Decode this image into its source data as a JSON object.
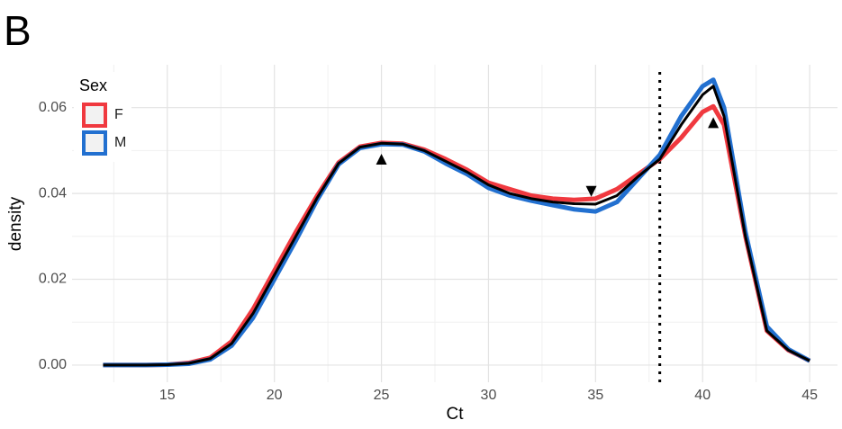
{
  "chart_data": {
    "type": "line",
    "panel_label": "B",
    "x_label": "Ct",
    "y_label": "density",
    "x": [
      12,
      13,
      14,
      15,
      16,
      17,
      18,
      19,
      20,
      21,
      22,
      23,
      24,
      25,
      26,
      27,
      28,
      29,
      30,
      31,
      32,
      33,
      34,
      35,
      36,
      37,
      38,
      39,
      40,
      40.5,
      41,
      42,
      43,
      44,
      45
    ],
    "series": [
      {
        "name": "F",
        "color": "#f0393f",
        "values": [
          0,
          0,
          0,
          0.0001,
          0.0005,
          0.0017,
          0.0055,
          0.013,
          0.022,
          0.031,
          0.0395,
          0.0472,
          0.0509,
          0.0518,
          0.0516,
          0.0502,
          0.048,
          0.0455,
          0.0425,
          0.041,
          0.0395,
          0.0388,
          0.0385,
          0.0388,
          0.041,
          0.0445,
          0.048,
          0.053,
          0.059,
          0.0603,
          0.056,
          0.03,
          0.008,
          0.0035,
          0.001
        ]
      },
      {
        "name": "M",
        "color": "#2270d0",
        "values": [
          0,
          0,
          0,
          0.0001,
          0.0003,
          0.0013,
          0.0045,
          0.011,
          0.02,
          0.029,
          0.0385,
          0.0468,
          0.0506,
          0.0515,
          0.0514,
          0.0498,
          0.047,
          0.0445,
          0.0413,
          0.0395,
          0.0383,
          0.0373,
          0.0363,
          0.0358,
          0.038,
          0.0435,
          0.049,
          0.058,
          0.065,
          0.0665,
          0.06,
          0.031,
          0.009,
          0.0037,
          0.001
        ]
      },
      {
        "color": "#000000",
        "values": [
          0,
          0,
          0,
          0.0001,
          0.0004,
          0.0015,
          0.005,
          0.012,
          0.021,
          0.03,
          0.039,
          0.047,
          0.0508,
          0.0517,
          0.0515,
          0.05,
          0.0475,
          0.045,
          0.042,
          0.04,
          0.0388,
          0.038,
          0.0376,
          0.0375,
          0.0395,
          0.044,
          0.048,
          0.056,
          0.063,
          0.065,
          0.058,
          0.03,
          0.008,
          0.0035,
          0.001
        ]
      }
    ],
    "legend_title": "Sex",
    "vline": 38,
    "markers": [
      {
        "x": 25,
        "y": 0.048,
        "shape": "up"
      },
      {
        "x": 34.8,
        "y": 0.0405,
        "shape": "down"
      },
      {
        "x": 40.5,
        "y": 0.0565,
        "shape": "up"
      }
    ],
    "xlim": [
      10.55,
      46.3
    ],
    "ylim": [
      -0.004,
      0.07
    ],
    "xticks": [
      15,
      20,
      25,
      30,
      35,
      40,
      45
    ],
    "yticks": [
      {
        "value": 0,
        "label": "0.00"
      },
      {
        "value": 0.02,
        "label": "0.02"
      },
      {
        "value": 0.04,
        "label": "0.04"
      },
      {
        "value": 0.06,
        "label": "0.06"
      }
    ],
    "x_minor_ticks": [
      12.5,
      17.5,
      22.5,
      27.5,
      32.5,
      37.5,
      42.5
    ],
    "y_minor_ticks": [
      0.01,
      0.03,
      0.05
    ],
    "grid": true
  }
}
